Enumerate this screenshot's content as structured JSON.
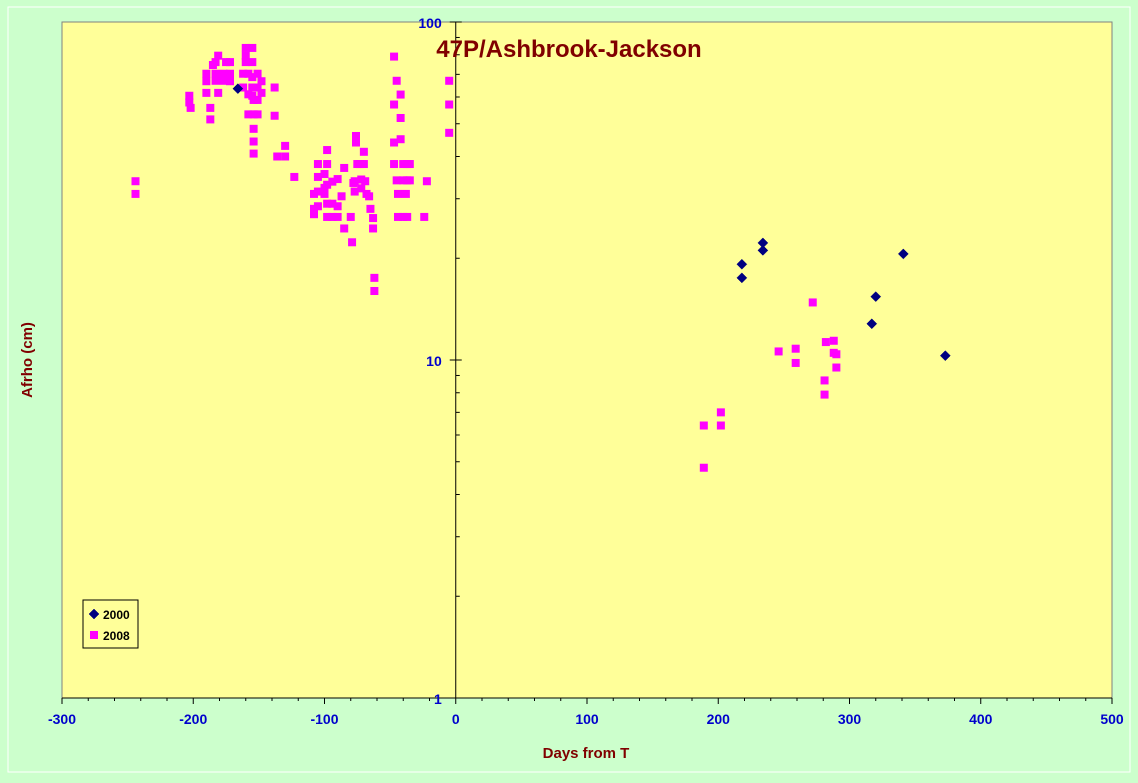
{
  "chart_data": {
    "type": "scatter",
    "title": "47P/Ashbrook-Jackson",
    "xlabel": "Days from T",
    "ylabel": "Afrho (cm)",
    "xlim": [
      -300,
      500
    ],
    "ylim": [
      1,
      100
    ],
    "y_scale": "log",
    "x_ticks": [
      -300,
      -200,
      -100,
      0,
      100,
      200,
      300,
      400,
      500
    ],
    "x_tick_labels": [
      "-300",
      "-200",
      "-100",
      "0",
      "100",
      "200",
      "300",
      "400",
      "500"
    ],
    "y_ticks": [
      1,
      10,
      100
    ],
    "y_tick_labels": [
      "1",
      "10",
      "100"
    ],
    "grid": false,
    "legend_position": "bottom-left",
    "colors": {
      "page_background": "#ccffcc",
      "plot_background": "#ffff99",
      "title": "#800000",
      "axis_label": "#800000",
      "tick_label": "#0000cc",
      "axis_line": "#000000"
    },
    "series": [
      {
        "name": "2000",
        "marker": "diamond",
        "color": "#000080",
        "points": [
          [
            -166,
            63.5
          ],
          [
            218,
            19.2
          ],
          [
            218,
            17.5
          ],
          [
            234,
            22.2
          ],
          [
            234,
            21.1
          ],
          [
            317,
            12.8
          ],
          [
            320,
            15.4
          ],
          [
            341,
            20.6
          ],
          [
            373,
            10.3
          ]
        ]
      },
      {
        "name": "2008",
        "marker": "square",
        "color": "#ff00ff",
        "points": [
          [
            -244,
            33.8
          ],
          [
            -244,
            31.0
          ],
          [
            -203,
            60.5
          ],
          [
            -203,
            57.8
          ],
          [
            -202,
            55.7
          ],
          [
            -190,
            70.3
          ],
          [
            -190,
            66.8
          ],
          [
            -190,
            61.7
          ],
          [
            -187,
            55.7
          ],
          [
            -187,
            51.5
          ],
          [
            -185,
            74.6
          ],
          [
            -183,
            76.1
          ],
          [
            -183,
            70.3
          ],
          [
            -183,
            67.0
          ],
          [
            -181,
            79.5
          ],
          [
            -181,
            61.7
          ],
          [
            -177,
            70.3
          ],
          [
            -177,
            67.0
          ],
          [
            -175,
            76.1
          ],
          [
            -172,
            76.1
          ],
          [
            -172,
            70.3
          ],
          [
            -172,
            66.8
          ],
          [
            -162,
            70.3
          ],
          [
            -162,
            64.0
          ],
          [
            -160,
            83.8
          ],
          [
            -160,
            79.5
          ],
          [
            -160,
            76.1
          ],
          [
            -158,
            70.3
          ],
          [
            -158,
            61.1
          ],
          [
            -158,
            53.3
          ],
          [
            -155,
            83.8
          ],
          [
            -155,
            76.1
          ],
          [
            -155,
            68.7
          ],
          [
            -155,
            64.0
          ],
          [
            -155,
            60.5
          ],
          [
            -154,
            58.8
          ],
          [
            -154,
            53.3
          ],
          [
            -154,
            48.3
          ],
          [
            -154,
            44.3
          ],
          [
            -154,
            40.8
          ],
          [
            -151,
            70.3
          ],
          [
            -151,
            64.0
          ],
          [
            -151,
            58.8
          ],
          [
            -151,
            53.3
          ],
          [
            -148,
            66.8
          ],
          [
            -148,
            61.7
          ],
          [
            -138,
            64.0
          ],
          [
            -138,
            52.8
          ],
          [
            -136,
            40.0
          ],
          [
            -130,
            43.0
          ],
          [
            -130,
            40.0
          ],
          [
            -123,
            34.8
          ],
          [
            -108,
            31.0
          ],
          [
            -108,
            28.0
          ],
          [
            -108,
            27.0
          ],
          [
            -105,
            38.0
          ],
          [
            -105,
            34.8
          ],
          [
            -105,
            31.5
          ],
          [
            -105,
            28.5
          ],
          [
            -100,
            35.5
          ],
          [
            -100,
            32.3
          ],
          [
            -100,
            31.0
          ],
          [
            -98,
            41.8
          ],
          [
            -98,
            38.0
          ],
          [
            -98,
            33.0
          ],
          [
            -98,
            29.0
          ],
          [
            -98,
            26.5
          ],
          [
            -94,
            33.7
          ],
          [
            -94,
            29.0
          ],
          [
            -94,
            26.5
          ],
          [
            -90,
            34.3
          ],
          [
            -90,
            28.5
          ],
          [
            -90,
            26.5
          ],
          [
            -87,
            30.5
          ],
          [
            -85,
            37.0
          ],
          [
            -85,
            24.5
          ],
          [
            -80,
            26.5
          ],
          [
            -79,
            22.3
          ],
          [
            -78,
            33.4
          ],
          [
            -77,
            31.5
          ],
          [
            -77,
            33.8
          ],
          [
            -76,
            46.0
          ],
          [
            -76,
            44.0
          ],
          [
            -75,
            38.0
          ],
          [
            -73,
            38.0
          ],
          [
            -72,
            32.2
          ],
          [
            -72,
            34.2
          ],
          [
            -70,
            41.3
          ],
          [
            -70,
            38.0
          ],
          [
            -69,
            33.8
          ],
          [
            -68,
            31.0
          ],
          [
            -66,
            30.5
          ],
          [
            -65,
            28.0
          ],
          [
            -63,
            26.3
          ],
          [
            -63,
            24.5
          ],
          [
            -62,
            17.5
          ],
          [
            -62,
            16.0
          ],
          [
            -47,
            79.0
          ],
          [
            -47,
            57.0
          ],
          [
            -47,
            44.0
          ],
          [
            -47,
            38.0
          ],
          [
            -45,
            67.0
          ],
          [
            -45,
            34.0
          ],
          [
            -44,
            31.0
          ],
          [
            -44,
            26.5
          ],
          [
            -42,
            61.0
          ],
          [
            -42,
            52.0
          ],
          [
            -42,
            45.0
          ],
          [
            -40,
            38.0
          ],
          [
            -40,
            34.0
          ],
          [
            -40,
            26.5
          ],
          [
            -38,
            31.0
          ],
          [
            -37,
            38.0
          ],
          [
            -37,
            34.0
          ],
          [
            -37,
            26.5
          ],
          [
            -35,
            38.0
          ],
          [
            -35,
            34.0
          ],
          [
            -24,
            26.5
          ],
          [
            -22,
            33.8
          ],
          [
            -5,
            67.0
          ],
          [
            -5,
            57.0
          ],
          [
            -5,
            47.0
          ]
        ]
      }
    ],
    "series_2008_post_perihelion": [
      [
        189,
        6.4
      ],
      [
        189,
        4.8
      ],
      [
        202,
        7.0
      ],
      [
        202,
        6.4
      ],
      [
        246,
        10.6
      ],
      [
        259,
        10.8
      ],
      [
        259,
        9.8
      ],
      [
        272,
        14.8
      ],
      [
        281,
        8.7
      ],
      [
        281,
        7.9
      ],
      [
        282,
        11.3
      ],
      [
        288,
        10.5
      ],
      [
        288,
        11.4
      ],
      [
        290,
        10.4
      ],
      [
        290,
        9.5
      ]
    ]
  }
}
